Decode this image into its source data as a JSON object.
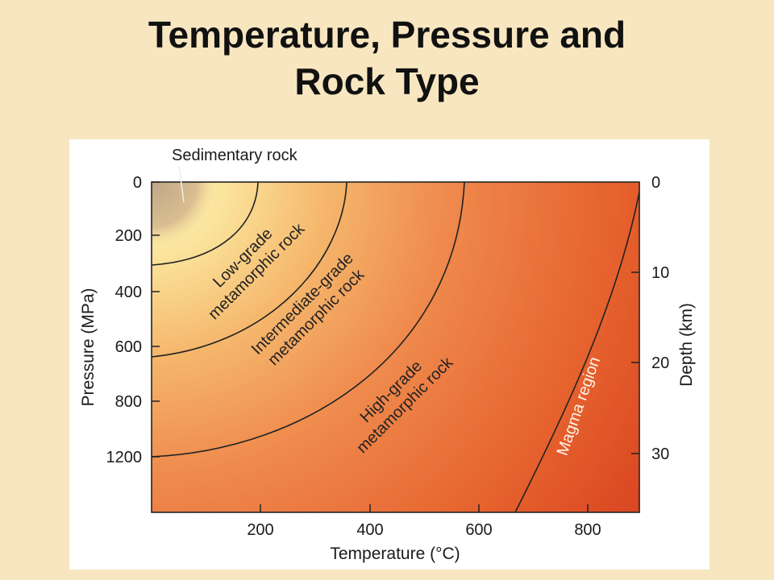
{
  "title": {
    "line1": "Temperature, Pressure and",
    "line2": "Rock Type"
  },
  "diagram": {
    "x_axis": {
      "label": "Temperature (°C)",
      "ticks": [
        "200",
        "400",
        "600",
        "800"
      ]
    },
    "y_axis_left": {
      "label": "Pressure (MPa)",
      "ticks": [
        "0",
        "200",
        "400",
        "600",
        "800",
        "1200"
      ]
    },
    "y_axis_right": {
      "label": "Depth (km)",
      "ticks": [
        "0",
        "10",
        "20",
        "30"
      ]
    },
    "regions": {
      "sedimentary": "Sedimentary rock",
      "low_grade_line1": "Low-grade",
      "low_grade_line2": "metamorphic rock",
      "intermediate_line1": "Intermediate-grade",
      "intermediate_line2": "metamorphic rock",
      "high_grade_line1": "High-grade",
      "high_grade_line2": "metamorphic rock",
      "magma": "Magma region"
    },
    "colors": {
      "light": "#fcefb4",
      "mid": "#ef8a45",
      "dark": "#d9431f",
      "sediment": "#c7ab8a"
    }
  }
}
